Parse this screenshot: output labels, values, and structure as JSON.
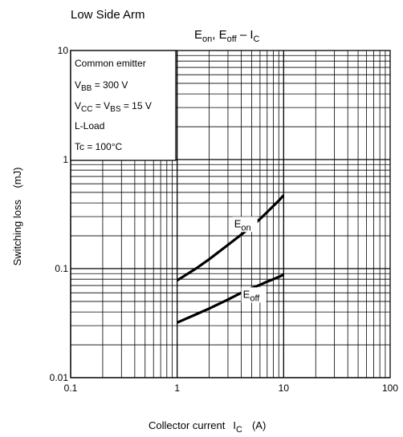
{
  "chart_data": {
    "type": "line",
    "supertitle": "Low Side Arm",
    "title": {
      "e_on": "E",
      "e_on_sub": "on",
      "sep": ", ",
      "e_off": "E",
      "e_off_sub": "off",
      "dash": " – ",
      "ic": "I",
      "ic_sub": "C"
    },
    "xlabel": {
      "text": "Collector current",
      "sym": "I",
      "sub": "C",
      "unit": "(A)"
    },
    "ylabel": "Switching loss    (mJ)",
    "x_scale": "log",
    "y_scale": "log",
    "xlim": [
      0.1,
      100
    ],
    "ylim": [
      0.01,
      10
    ],
    "x_ticks": [
      {
        "value": 0.1,
        "label": "0.1"
      },
      {
        "value": 1,
        "label": "1"
      },
      {
        "value": 10,
        "label": "10"
      },
      {
        "value": 100,
        "label": "100"
      }
    ],
    "y_ticks": [
      {
        "value": 0.01,
        "label": "0.01"
      },
      {
        "value": 0.1,
        "label": "0.1"
      },
      {
        "value": 1,
        "label": "1"
      },
      {
        "value": 10,
        "label": "10"
      }
    ],
    "grid": true,
    "conditions": [
      {
        "main": "Common emitter"
      },
      {
        "main": "V",
        "sub": "BB",
        "rest": " = 300 V"
      },
      {
        "main": "V",
        "sub": "CC",
        "rest": " = V",
        "sub2": "BS",
        "rest2": " = 15 V"
      },
      {
        "main": "L-Load"
      },
      {
        "main": "Tc = 100°C"
      }
    ],
    "series": [
      {
        "name": "E",
        "name_sub": "on",
        "label_at": {
          "x": 4.3,
          "y": 0.24
        },
        "x": [
          1,
          1.5,
          2,
          3,
          4,
          5,
          6,
          7,
          8,
          9,
          10
        ],
        "y": [
          0.078,
          0.1,
          0.122,
          0.165,
          0.205,
          0.245,
          0.285,
          0.33,
          0.375,
          0.42,
          0.47
        ]
      },
      {
        "name": "E",
        "name_sub": "off",
        "label_at": {
          "x": 5.2,
          "y": 0.054
        },
        "x": [
          1,
          1.5,
          2,
          3,
          4,
          5,
          6,
          7,
          8,
          9,
          10
        ],
        "y": [
          0.032,
          0.038,
          0.043,
          0.052,
          0.06,
          0.066,
          0.071,
          0.076,
          0.08,
          0.084,
          0.088
        ]
      }
    ]
  }
}
